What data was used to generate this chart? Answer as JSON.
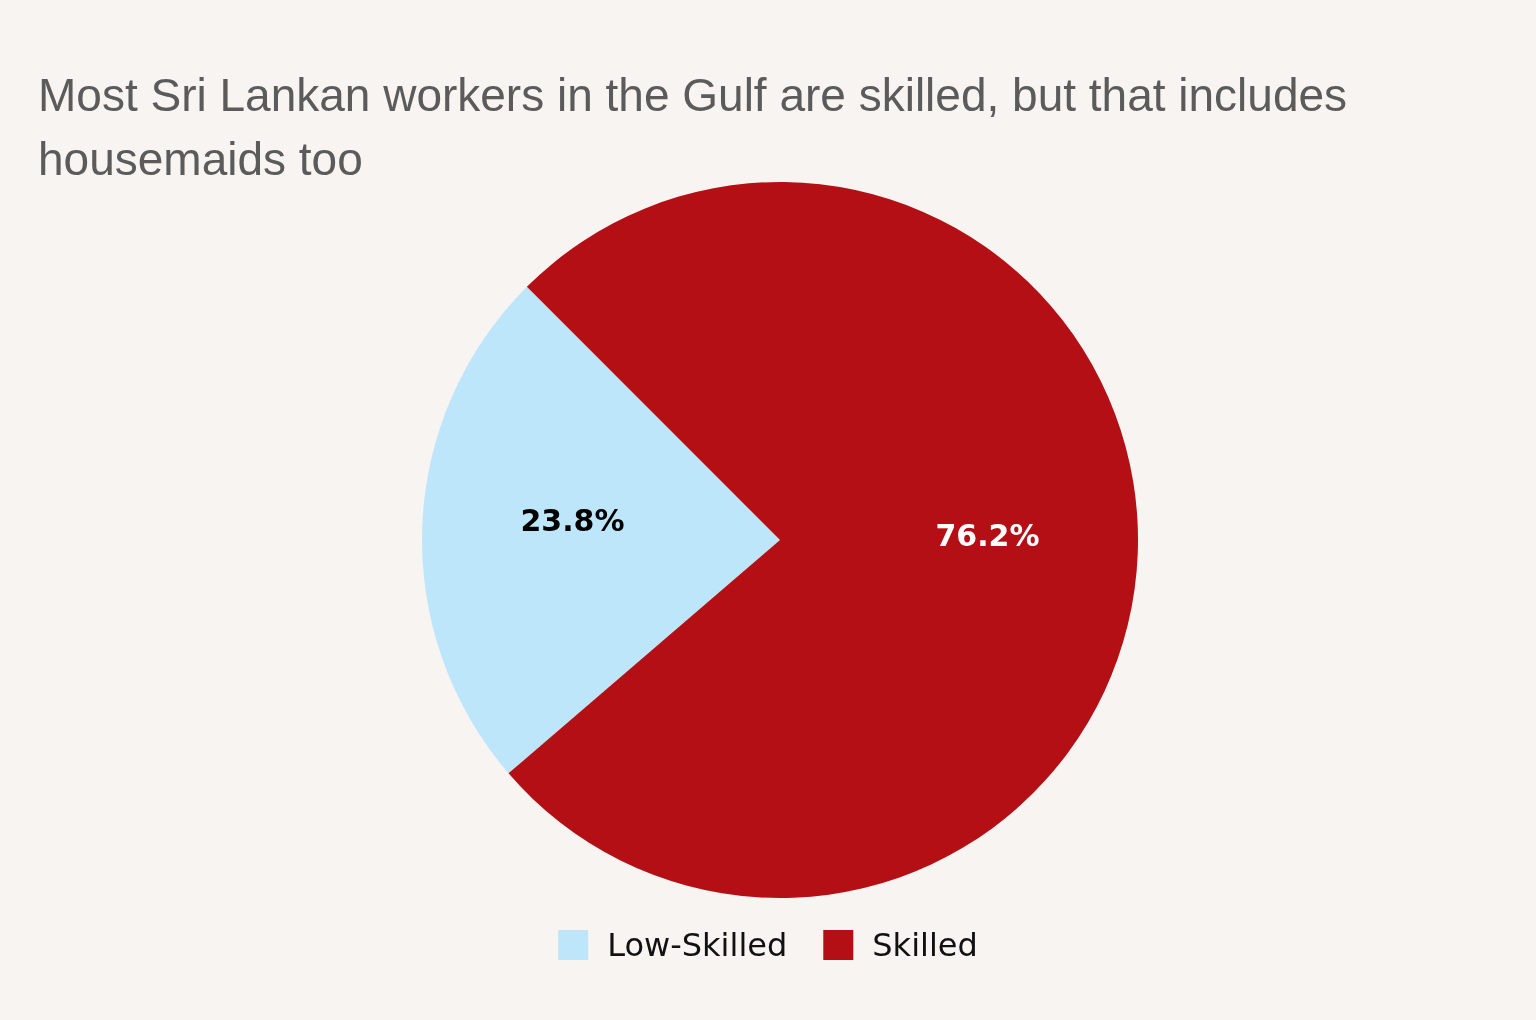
{
  "chart_data": {
    "type": "pie",
    "title": "Most Sri Lankan workers in the Gulf are skilled, but that includes housemaids too",
    "categories": [
      "Low-Skilled",
      "Skilled"
    ],
    "values": [
      23.8,
      76.2
    ],
    "colors": [
      "#bee6fa",
      "#b30f14"
    ],
    "value_labels": [
      "23.8%",
      "76.2%"
    ],
    "legend": "bottom"
  }
}
